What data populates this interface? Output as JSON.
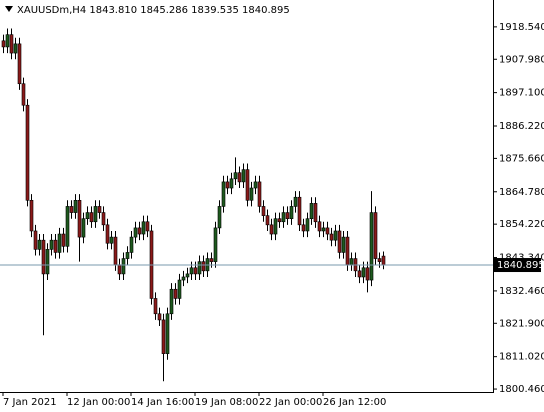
{
  "chart_data": {
    "type": "candlestick",
    "title": "XAUUSDm,H4  1843.810 1845.286 1839.535 1840.895",
    "categories": [
      "7 Jan 2021",
      null,
      null,
      null,
      null,
      null,
      null,
      null,
      null,
      null,
      null,
      null,
      null,
      null,
      null,
      null,
      "12 Jan 00:00",
      null,
      null,
      null,
      null,
      null,
      null,
      null,
      null,
      null,
      null,
      null,
      null,
      null,
      null,
      null,
      "14 Jan 16:00",
      null,
      null,
      null,
      null,
      null,
      null,
      null,
      null,
      null,
      null,
      null,
      null,
      null,
      null,
      null,
      "19 Jan 08:00",
      null,
      null,
      null,
      null,
      null,
      null,
      null,
      null,
      null,
      null,
      null,
      null,
      null,
      null,
      null,
      "22 Jan 00:00",
      null,
      null,
      null,
      null,
      null,
      null,
      null,
      null,
      null,
      null,
      null,
      null,
      null,
      null,
      null,
      "26 Jan 12:00",
      null,
      null,
      null,
      null,
      null,
      null,
      null,
      null,
      null,
      null,
      null,
      null,
      null,
      null,
      null
    ],
    "open": [
      1914,
      1912,
      1916,
      1910,
      1913,
      1900,
      1893,
      1862,
      1852,
      1846,
      1849,
      1838,
      1846,
      1849,
      1845,
      1851,
      1847,
      1860,
      1858,
      1862,
      1850,
      1856,
      1858,
      1855,
      1860,
      1858,
      1854,
      1848,
      1850,
      1841,
      1838,
      1843,
      1845,
      1850,
      1853,
      1851,
      1855,
      1852,
      1830,
      1825,
      1823,
      1812,
      1825,
      1833,
      1830,
      1836,
      1837,
      1838,
      1840,
      1838,
      1842,
      1839,
      1843,
      1842,
      1853,
      1860,
      1868,
      1866,
      1869,
      1871,
      1868,
      1872,
      1862,
      1866,
      1868,
      1860,
      1857,
      1854,
      1851,
      1856,
      1855,
      1858,
      1856,
      1860,
      1863,
      1854,
      1852,
      1856,
      1861,
      1855,
      1852,
      1853,
      1851,
      1849,
      1852,
      1845,
      1850,
      1841,
      1843,
      1839,
      1837,
      1840,
      1836,
      1858,
      1843,
      1843.81
    ],
    "high": [
      1916,
      1918,
      1918,
      1915,
      1915,
      1902,
      1895,
      1864,
      1854,
      1851,
      1851,
      1848,
      1851,
      1851,
      1853,
      1853,
      1862,
      1862,
      1864,
      1864,
      1858,
      1860,
      1860,
      1862,
      1862,
      1860,
      1856,
      1852,
      1852,
      1843,
      1845,
      1847,
      1852,
      1855,
      1855,
      1857,
      1857,
      1854,
      1832,
      1827,
      1825,
      1827,
      1835,
      1835,
      1838,
      1839,
      1840,
      1842,
      1842,
      1844,
      1844,
      1845,
      1845,
      1855,
      1862,
      1870,
      1870,
      1871,
      1876,
      1873,
      1874,
      1874,
      1868,
      1870,
      1870,
      1862,
      1859,
      1856,
      1858,
      1858,
      1860,
      1860,
      1862,
      1865,
      1865,
      1856,
      1858,
      1863,
      1863,
      1857,
      1855,
      1855,
      1853,
      1854,
      1854,
      1852,
      1852,
      1845,
      1845,
      1841,
      1842,
      1842,
      1865,
      1860,
      1845,
      1845.286
    ],
    "low": [
      1910,
      1910,
      1908,
      1908,
      1898,
      1891,
      1860,
      1850,
      1844,
      1844,
      1818,
      1836,
      1844,
      1843,
      1843,
      1845,
      1845,
      1856,
      1856,
      1842,
      1848,
      1854,
      1853,
      1853,
      1856,
      1852,
      1846,
      1846,
      1839,
      1836,
      1836,
      1841,
      1843,
      1848,
      1849,
      1849,
      1850,
      1828,
      1823,
      1821,
      1803,
      1810,
      1823,
      1828,
      1828,
      1834,
      1835,
      1836,
      1836,
      1836,
      1837,
      1837,
      1840,
      1840,
      1851,
      1858,
      1864,
      1864,
      1867,
      1866,
      1866,
      1860,
      1860,
      1864,
      1858,
      1855,
      1852,
      1849,
      1849,
      1853,
      1853,
      1854,
      1854,
      1858,
      1852,
      1850,
      1850,
      1854,
      1853,
      1850,
      1850,
      1849,
      1847,
      1847,
      1843,
      1843,
      1839,
      1839,
      1837,
      1835,
      1835,
      1832,
      1834,
      1841,
      1840,
      1839.535
    ],
    "close": [
      1912,
      1916,
      1910,
      1913,
      1900,
      1893,
      1862,
      1852,
      1846,
      1849,
      1838,
      1846,
      1849,
      1845,
      1851,
      1847,
      1860,
      1858,
      1862,
      1850,
      1856,
      1858,
      1855,
      1860,
      1858,
      1854,
      1848,
      1850,
      1841,
      1838,
      1843,
      1845,
      1850,
      1853,
      1851,
      1855,
      1852,
      1830,
      1825,
      1823,
      1812,
      1825,
      1833,
      1830,
      1836,
      1837,
      1838,
      1840,
      1838,
      1842,
      1839,
      1843,
      1842,
      1853,
      1860,
      1868,
      1866,
      1869,
      1871,
      1868,
      1872,
      1862,
      1866,
      1868,
      1860,
      1857,
      1854,
      1851,
      1856,
      1855,
      1858,
      1856,
      1860,
      1863,
      1854,
      1852,
      1856,
      1861,
      1855,
      1852,
      1853,
      1851,
      1849,
      1852,
      1845,
      1850,
      1841,
      1843,
      1839,
      1837,
      1840,
      1836,
      1858,
      1843,
      1842,
      1840.895
    ],
    "up_color": "#1e5a1e",
    "down_color": "#8b1a1a",
    "current_price": 1840.895,
    "ylim": [
      1799.5,
      1927.3
    ],
    "yticks": [
      {
        "value": 1918.54,
        "label": "1918.540"
      },
      {
        "value": 1907.98,
        "label": "1907.980"
      },
      {
        "value": 1897.1,
        "label": "1897.100"
      },
      {
        "value": 1886.22,
        "label": "1886.220"
      },
      {
        "value": 1875.66,
        "label": "1875.660"
      },
      {
        "value": 1864.78,
        "label": "1864.780"
      },
      {
        "value": 1854.22,
        "label": "1854.220"
      },
      {
        "value": 1843.34,
        "label": "1843.340"
      },
      {
        "value": 1832.46,
        "label": "1832.460"
      },
      {
        "value": 1821.9,
        "label": "1821.900"
      },
      {
        "value": 1811.02,
        "label": "1811.020"
      },
      {
        "value": 1800.46,
        "label": "1800.460"
      }
    ]
  }
}
